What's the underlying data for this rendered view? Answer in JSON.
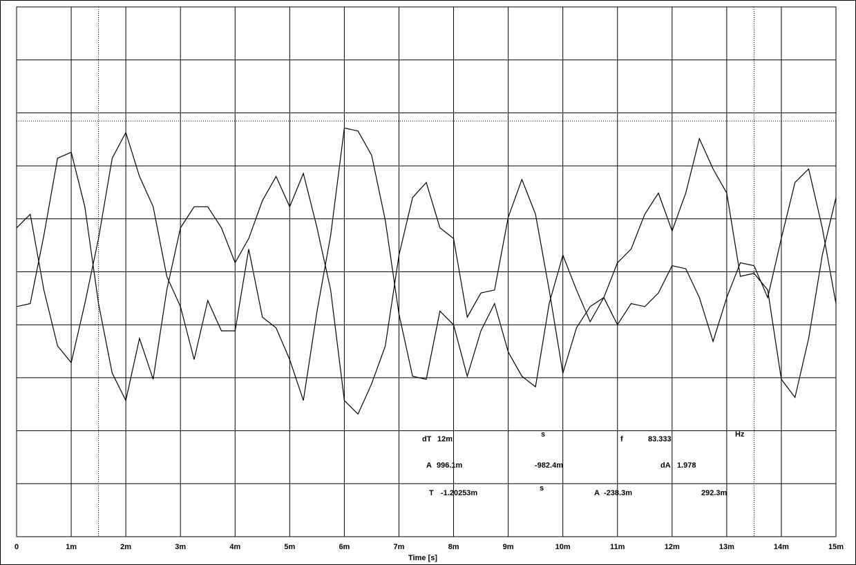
{
  "chart_data": {
    "type": "line",
    "x_label": "Time [s]",
    "x": [
      0,
      0.00025,
      0.0005,
      0.00075,
      0.001,
      0.00125,
      0.0015,
      0.00175,
      0.002,
      0.00225,
      0.0025,
      0.00275,
      0.003,
      0.00325,
      0.0035,
      0.00375,
      0.004,
      0.00425,
      0.0045,
      0.00475,
      0.005,
      0.00525,
      0.0055,
      0.00575,
      0.006,
      0.00625,
      0.0065,
      0.00675,
      0.007,
      0.00725,
      0.0075,
      0.00775,
      0.008,
      0.00825,
      0.0085,
      0.00875,
      0.009,
      0.00925,
      0.0095,
      0.00975,
      0.01,
      0.01025,
      0.0105,
      0.01075,
      0.011,
      0.01125,
      0.0115,
      0.01175,
      0.012,
      0.01225,
      0.0125,
      0.01275,
      0.013,
      0.01325,
      0.0135,
      0.01375,
      0.014,
      0.01425,
      0.0145,
      0.01475,
      0.015
    ],
    "series": [
      {
        "color": "#000000",
        "values": [
          0.29,
          0.38,
          -0.12,
          -0.49,
          -0.6,
          -0.21,
          0.22,
          0.75,
          0.92,
          0.63,
          0.43,
          -0.03,
          -0.23,
          -0.58,
          -0.19,
          -0.39,
          -0.39,
          0.15,
          -0.3,
          -0.37,
          -0.58,
          -0.85,
          -0.26,
          0.24,
          0.95,
          0.93,
          0.77,
          0.34,
          -0.28,
          -0.69,
          -0.71,
          -0.26,
          -0.35,
          -0.69,
          -0.39,
          -0.21,
          -0.53,
          -0.69,
          -0.76,
          -0.21,
          0.11,
          -0.12,
          -0.33,
          -0.17,
          0.06,
          0.15,
          0.38,
          0.52,
          0.27,
          0.52,
          0.88,
          0.68,
          0.52,
          -0.03,
          -0.01,
          -0.12,
          -0.71,
          -0.83,
          -0.44,
          0.11,
          0.49
        ]
      },
      {
        "color": "#000000",
        "values": [
          -0.23,
          -0.21,
          0.24,
          0.75,
          0.79,
          0.43,
          -0.21,
          -0.67,
          -0.85,
          -0.44,
          -0.71,
          -0.12,
          0.29,
          0.43,
          0.43,
          0.29,
          0.06,
          0.22,
          0.47,
          0.63,
          0.43,
          0.65,
          0.29,
          -0.12,
          -0.85,
          -0.94,
          -0.74,
          -0.49,
          0.11,
          0.49,
          0.59,
          0.29,
          0.22,
          -0.3,
          -0.14,
          -0.12,
          0.36,
          0.61,
          0.38,
          -0.12,
          -0.67,
          -0.37,
          -0.23,
          -0.17,
          -0.35,
          -0.21,
          -0.23,
          -0.14,
          0.04,
          0.02,
          -0.17,
          -0.46,
          -0.17,
          0.06,
          0.04,
          -0.17,
          0.22,
          0.59,
          0.68,
          0.29,
          -0.21
        ]
      }
    ],
    "xlim": [
      0,
      0.015
    ],
    "xticks": [
      0,
      {
        "value": 0.001,
        "label": "1m"
      },
      {
        "value": 0.002,
        "label": "2m"
      },
      {
        "value": 0.003,
        "label": "3m"
      },
      {
        "value": 0.004,
        "label": "4m"
      },
      {
        "value": 0.005,
        "label": "5m"
      },
      {
        "value": 0.006,
        "label": "6m"
      },
      {
        "value": 0.007,
        "label": "7m"
      },
      {
        "value": 0.008,
        "label": "8m"
      },
      {
        "value": 0.009,
        "label": "9m"
      },
      {
        "value": 0.01,
        "label": "10m"
      },
      {
        "value": 0.011,
        "label": "11m"
      },
      {
        "value": 0.012,
        "label": "12m"
      },
      {
        "value": 0.013,
        "label": "13m"
      },
      {
        "value": 0.014,
        "label": "14m"
      },
      {
        "value": 0.015,
        "label": "15m"
      }
    ],
    "ylim": [
      -1.75,
      1.75
    ],
    "yticks": [
      -1.75,
      -1.4,
      -1.05,
      -0.7,
      -0.35,
      0,
      0.35,
      0.7,
      1.05,
      1.4,
      1.75
    ],
    "grid": true,
    "cursors_x": [
      0.0015,
      0.0135
    ],
    "cursors_y": [
      0.9961
    ],
    "readouts": [
      "dT",
      "12m",
      "s",
      "f",
      "83.333",
      "Hz",
      "A",
      "996.1m",
      "-982.4m",
      "dA",
      "1.978",
      "T",
      "-1.20253m",
      "s",
      "A",
      "-238.3m",
      "292.3m"
    ]
  }
}
